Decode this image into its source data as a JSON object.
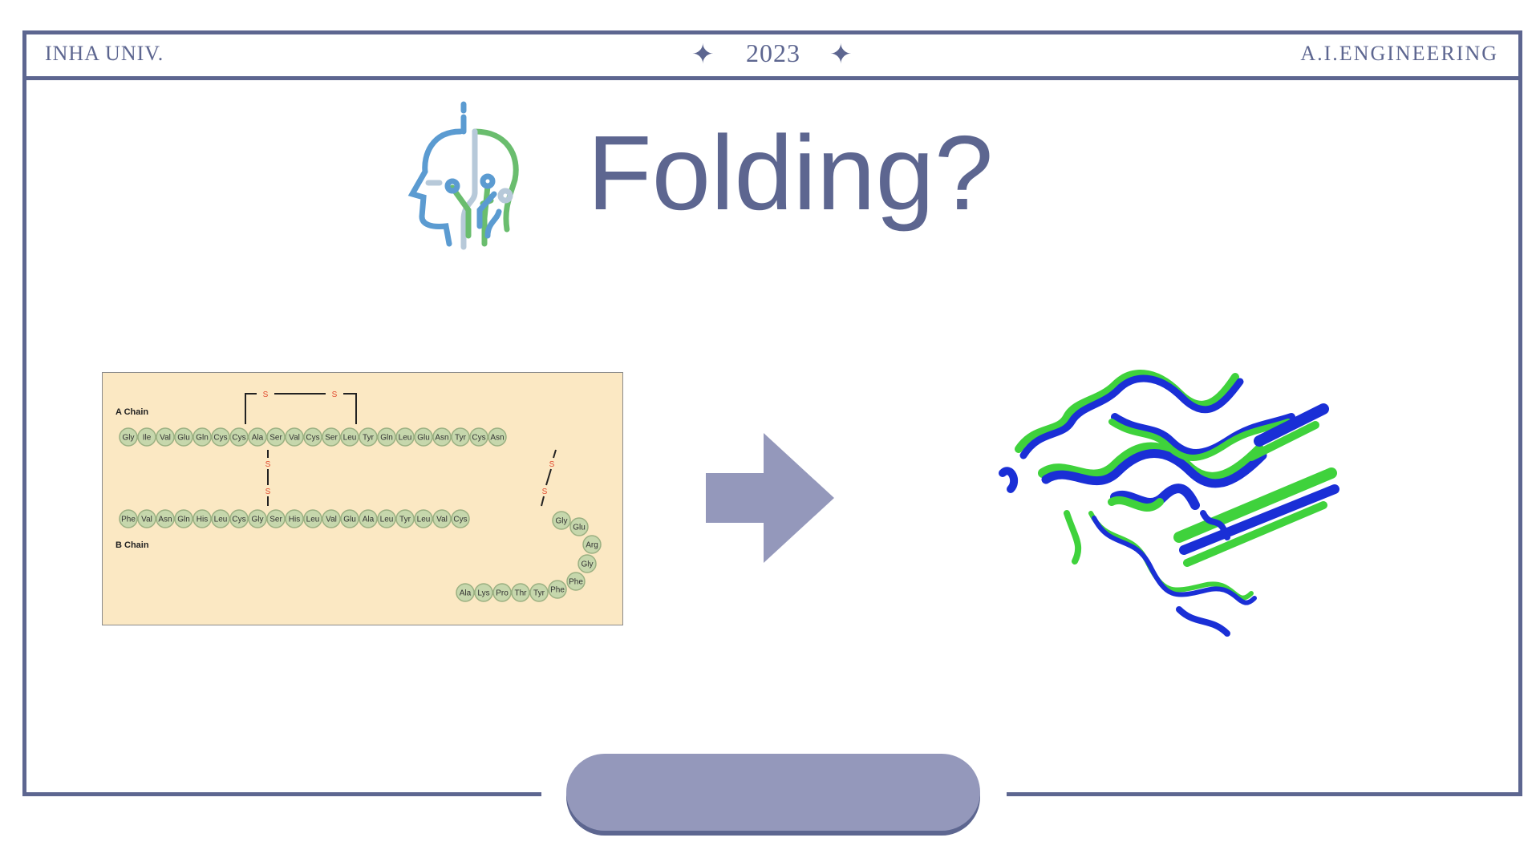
{
  "header": {
    "left": "INHA UNIV.",
    "center": "2023",
    "right": "A.I.ENGINEERING",
    "star_glyph": "✦"
  },
  "title": "Folding?",
  "sequence_diagram": {
    "chain_a_label": "A Chain",
    "chain_b_label": "B Chain",
    "disulfide_label": "S",
    "chain_a": [
      "Gly",
      "Ile",
      "Val",
      "Glu",
      "Gln",
      "Cys",
      "Cys",
      "Ala",
      "Ser",
      "Val",
      "Cys",
      "Ser",
      "Leu",
      "Tyr",
      "Gln",
      "Leu",
      "Glu",
      "Asn",
      "Tyr",
      "Cys",
      "Asn"
    ],
    "chain_b_row": [
      "Phe",
      "Val",
      "Asn",
      "Gln",
      "His",
      "Leu",
      "Cys",
      "Gly",
      "Ser",
      "His",
      "Leu",
      "Val",
      "Glu",
      "Ala",
      "Leu",
      "Tyr",
      "Leu",
      "Val",
      "Cys"
    ],
    "chain_b_turn": [
      "Gly",
      "Glu",
      "Arg",
      "Gly",
      "Phe",
      "Phe"
    ],
    "chain_b_tail": [
      "Ala",
      "Lys",
      "Pro",
      "Thr",
      "Tyr"
    ]
  },
  "colors": {
    "accent": "#5d6690",
    "arrow": "#9498bb",
    "panel": "#fbe8c3",
    "residue": "#c6d7ac",
    "protein_blue": "#1a2fd6",
    "protein_green": "#3fd23c"
  },
  "icons": {
    "logo": "ai-head-circuit-icon",
    "arrow": "right-arrow-icon"
  }
}
